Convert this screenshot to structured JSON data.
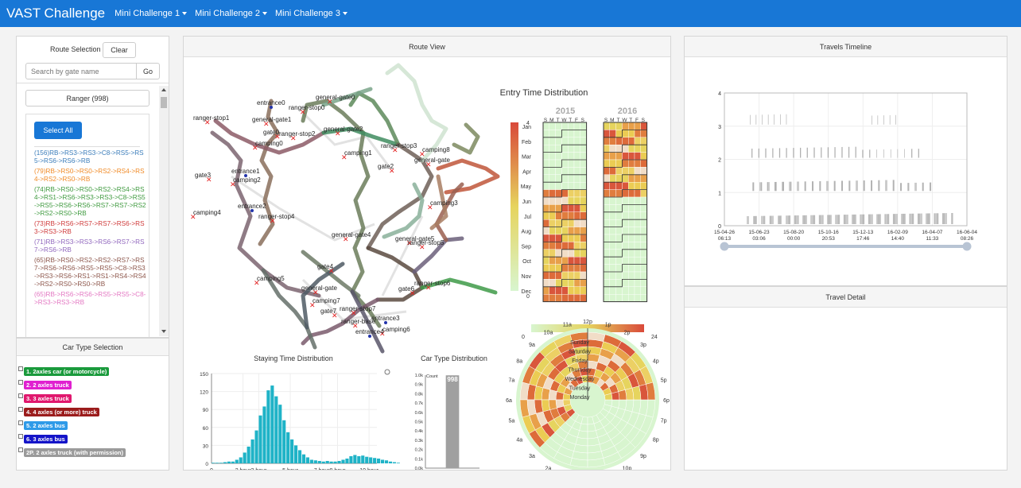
{
  "nav": {
    "brand": "VAST Challenge",
    "items": [
      "Mini Challenge 1",
      "Mini Challenge 2",
      "Mini Challenge 3"
    ]
  },
  "colors": {
    "nav_bg": "#1877d6"
  },
  "route_panel": {
    "title": "Route Selection",
    "clear": "Clear",
    "search_placeholder": "Search by gate name",
    "go": "Go",
    "filter": "Ranger (998)",
    "select_all": "Select All",
    "routes": [
      {
        "text": "(156)RB->RS3->RS3->C8->RS5->RS5->RS6->RS6->RB",
        "color": "#3b7dba"
      },
      {
        "text": "(79)RB->RS0->RS0->RS2->RS4->RS4->RS2->RS0->RB",
        "color": "#f08a26"
      },
      {
        "text": "(74)RB->RS0->RS0->RS2->RS4->RS4->RS1->RS6->RS3->RS3->C8->RS5->RS5->RS6->RS6->RS7->RS7->RS2->RS2->RS0->RB",
        "color": "#3f9a3f"
      },
      {
        "text": "(73)RB->RS6->RS7->RS7->RS6->RS3->RS3->RB",
        "color": "#cf3a3a"
      },
      {
        "text": "(71)RB->RS3->RS3->RS6->RS7->RS7->RS6->RB",
        "color": "#9067bd"
      },
      {
        "text": "(65)RB->RS0->RS2->RS2->RS7->RS7->RS6->RS6->RS5->RS5->C8->RS3->RS3->RS6->RS1->RS1->RS4->RS4->RS2->RS0->RS0->RB",
        "color": "#8d564b"
      },
      {
        "text": "(65)RB->RS6->RS6->RS5->RS5->C8->RS3->RS3->RB",
        "color": "#e377c2"
      }
    ]
  },
  "car_panel": {
    "title": "Car Type Selection",
    "types": [
      {
        "label": "1. 2axles car (or motorcycle)",
        "color": "#1a9a3c"
      },
      {
        "label": "2. 2 axles truck",
        "color": "#e020d0"
      },
      {
        "label": "3. 3 axles truck",
        "color": "#e0186e"
      },
      {
        "label": "4. 4 axles (or more) truck",
        "color": "#9b1c1c"
      },
      {
        "label": "5. 2 axles bus",
        "color": "#2e9ae8"
      },
      {
        "label": "6. 3 axles bus",
        "color": "#1414c8"
      },
      {
        "label": "2P. 2 axles truck (with permission)",
        "color": "#9a9a9a"
      }
    ]
  },
  "route_view": {
    "title": "Route View",
    "map_labels": [
      {
        "text": "entrance0",
        "kind": "entrance"
      },
      {
        "text": "general-gate0",
        "kind": "gate"
      },
      {
        "text": "ranger-stop0",
        "kind": "stop"
      },
      {
        "text": "ranger-stop1",
        "kind": "stop"
      },
      {
        "text": "general-gate1",
        "kind": "gate"
      },
      {
        "text": "gate0",
        "kind": "gate"
      },
      {
        "text": "ranger-stop2",
        "kind": "stop"
      },
      {
        "text": "general-gate2",
        "kind": "gate"
      },
      {
        "text": "camping0",
        "kind": "camp"
      },
      {
        "text": "camping1",
        "kind": "camp"
      },
      {
        "text": "ranger-stop3",
        "kind": "stop"
      },
      {
        "text": "camping8",
        "kind": "camp"
      },
      {
        "text": "general-gate",
        "kind": "gate"
      },
      {
        "text": "gate2",
        "kind": "gate"
      },
      {
        "text": "gate3",
        "kind": "gate"
      },
      {
        "text": "entrance1",
        "kind": "entrance"
      },
      {
        "text": "camping2",
        "kind": "camp"
      },
      {
        "text": "camping3",
        "kind": "camp"
      },
      {
        "text": "entrance2",
        "kind": "entrance"
      },
      {
        "text": "camping4",
        "kind": "camp"
      },
      {
        "text": "ranger-stop4",
        "kind": "stop"
      },
      {
        "text": "general-gate4",
        "kind": "gate"
      },
      {
        "text": "general-gate5",
        "kind": "gate"
      },
      {
        "text": "ranger-stop5",
        "kind": "stop"
      },
      {
        "text": "gate4",
        "kind": "gate"
      },
      {
        "text": "camping5",
        "kind": "camp"
      },
      {
        "text": "gate6",
        "kind": "gate"
      },
      {
        "text": "general-gate",
        "kind": "gate"
      },
      {
        "text": "ranger-stop6",
        "kind": "stop"
      },
      {
        "text": "camping7",
        "kind": "camp"
      },
      {
        "text": "ranger-stop7",
        "kind": "stop"
      },
      {
        "text": "gate7",
        "kind": "gate"
      },
      {
        "text": "entrance3",
        "kind": "entrance"
      },
      {
        "text": "ranger-base",
        "kind": "stop"
      },
      {
        "text": "camping6",
        "kind": "camp"
      },
      {
        "text": "entrance4",
        "kind": "entrance"
      }
    ],
    "entry_time": {
      "title": "Entry Time Distribution",
      "years": [
        "2015",
        "2016"
      ],
      "days": [
        "S",
        "M",
        "T",
        "W",
        "T",
        "F",
        "S"
      ],
      "months": [
        "Jan",
        "Feb",
        "Mar",
        "Apr",
        "May",
        "Jun",
        "Jul",
        "Aug",
        "Sep",
        "Oct",
        "Nov",
        "Dec"
      ],
      "scale_max": "4",
      "scale_min": "0",
      "hour_scale_min": "0",
      "hour_scale_max": "24"
    },
    "radial": {
      "hours": [
        "12p",
        "11a",
        "10a",
        "9a",
        "8a",
        "7a",
        "6a",
        "5a",
        "4a",
        "3a",
        "2a",
        "1a",
        "12a",
        "11p",
        "10p",
        "9p",
        "8p",
        "7p",
        "6p",
        "5p",
        "4p",
        "3p",
        "2p",
        "1p"
      ],
      "weekdays": [
        "Sunday",
        "Saturday",
        "Friday",
        "Thursday",
        "Wednesday",
        "Tuesday",
        "Monday"
      ]
    }
  },
  "staying_time": {
    "title": "Staying Time Distribution"
  },
  "car_type_dist": {
    "title": "Car Type Distribution"
  },
  "timeline": {
    "title": "Travels Timeline",
    "ticks": [
      "15-04-26\n06:13",
      "15-06-23\n03:06",
      "15-08-20\n00:00",
      "15-10-16\n20:53",
      "15-12-13\n17:46",
      "16-02-09\n14:40",
      "16-04-07\n11:33",
      "16-06-04\n08:26"
    ],
    "y_ticks": [
      "0",
      "1",
      "2",
      "3",
      "4"
    ]
  },
  "travel_detail": {
    "title": "Travel Detail"
  },
  "chart_data": [
    {
      "type": "bar",
      "title": "Staying Time Distribution",
      "xlabel": "",
      "ylabel": "",
      "x_ticks": [
        "0",
        "2 hour",
        "3 hour",
        "5 hour",
        "7 hour",
        "8 hour",
        "10 hour"
      ],
      "y_ticks": [
        0,
        30,
        60,
        90,
        120,
        150
      ],
      "ylim": [
        0,
        150
      ],
      "xlim": [
        0,
        10.5
      ],
      "bin_width": 0.25,
      "values": [
        1,
        1,
        1,
        2,
        3,
        3,
        6,
        10,
        18,
        28,
        40,
        55,
        80,
        95,
        122,
        130,
        112,
        98,
        72,
        52,
        40,
        30,
        22,
        15,
        10,
        6,
        5,
        4,
        3,
        4,
        3,
        3,
        4,
        6,
        8,
        12,
        14,
        12,
        13,
        11,
        10,
        9,
        8,
        6,
        5,
        3,
        2,
        1
      ]
    },
    {
      "type": "bar",
      "title": "Car Type Distribution",
      "ylabel": "Count",
      "categories": [
        "Car",
        "Truck",
        "Bus"
      ],
      "values": [
        0,
        998,
        0
      ],
      "y_ticks": [
        "0.0k",
        "0.1k",
        "0.2k",
        "0.3k",
        "0.4k",
        "0.5k",
        "0.6k",
        "0.7k",
        "0.8k",
        "0.9k",
        "1.0k"
      ],
      "ylim": [
        0,
        1000
      ],
      "data_labels": [
        "",
        "998",
        ""
      ]
    }
  ]
}
